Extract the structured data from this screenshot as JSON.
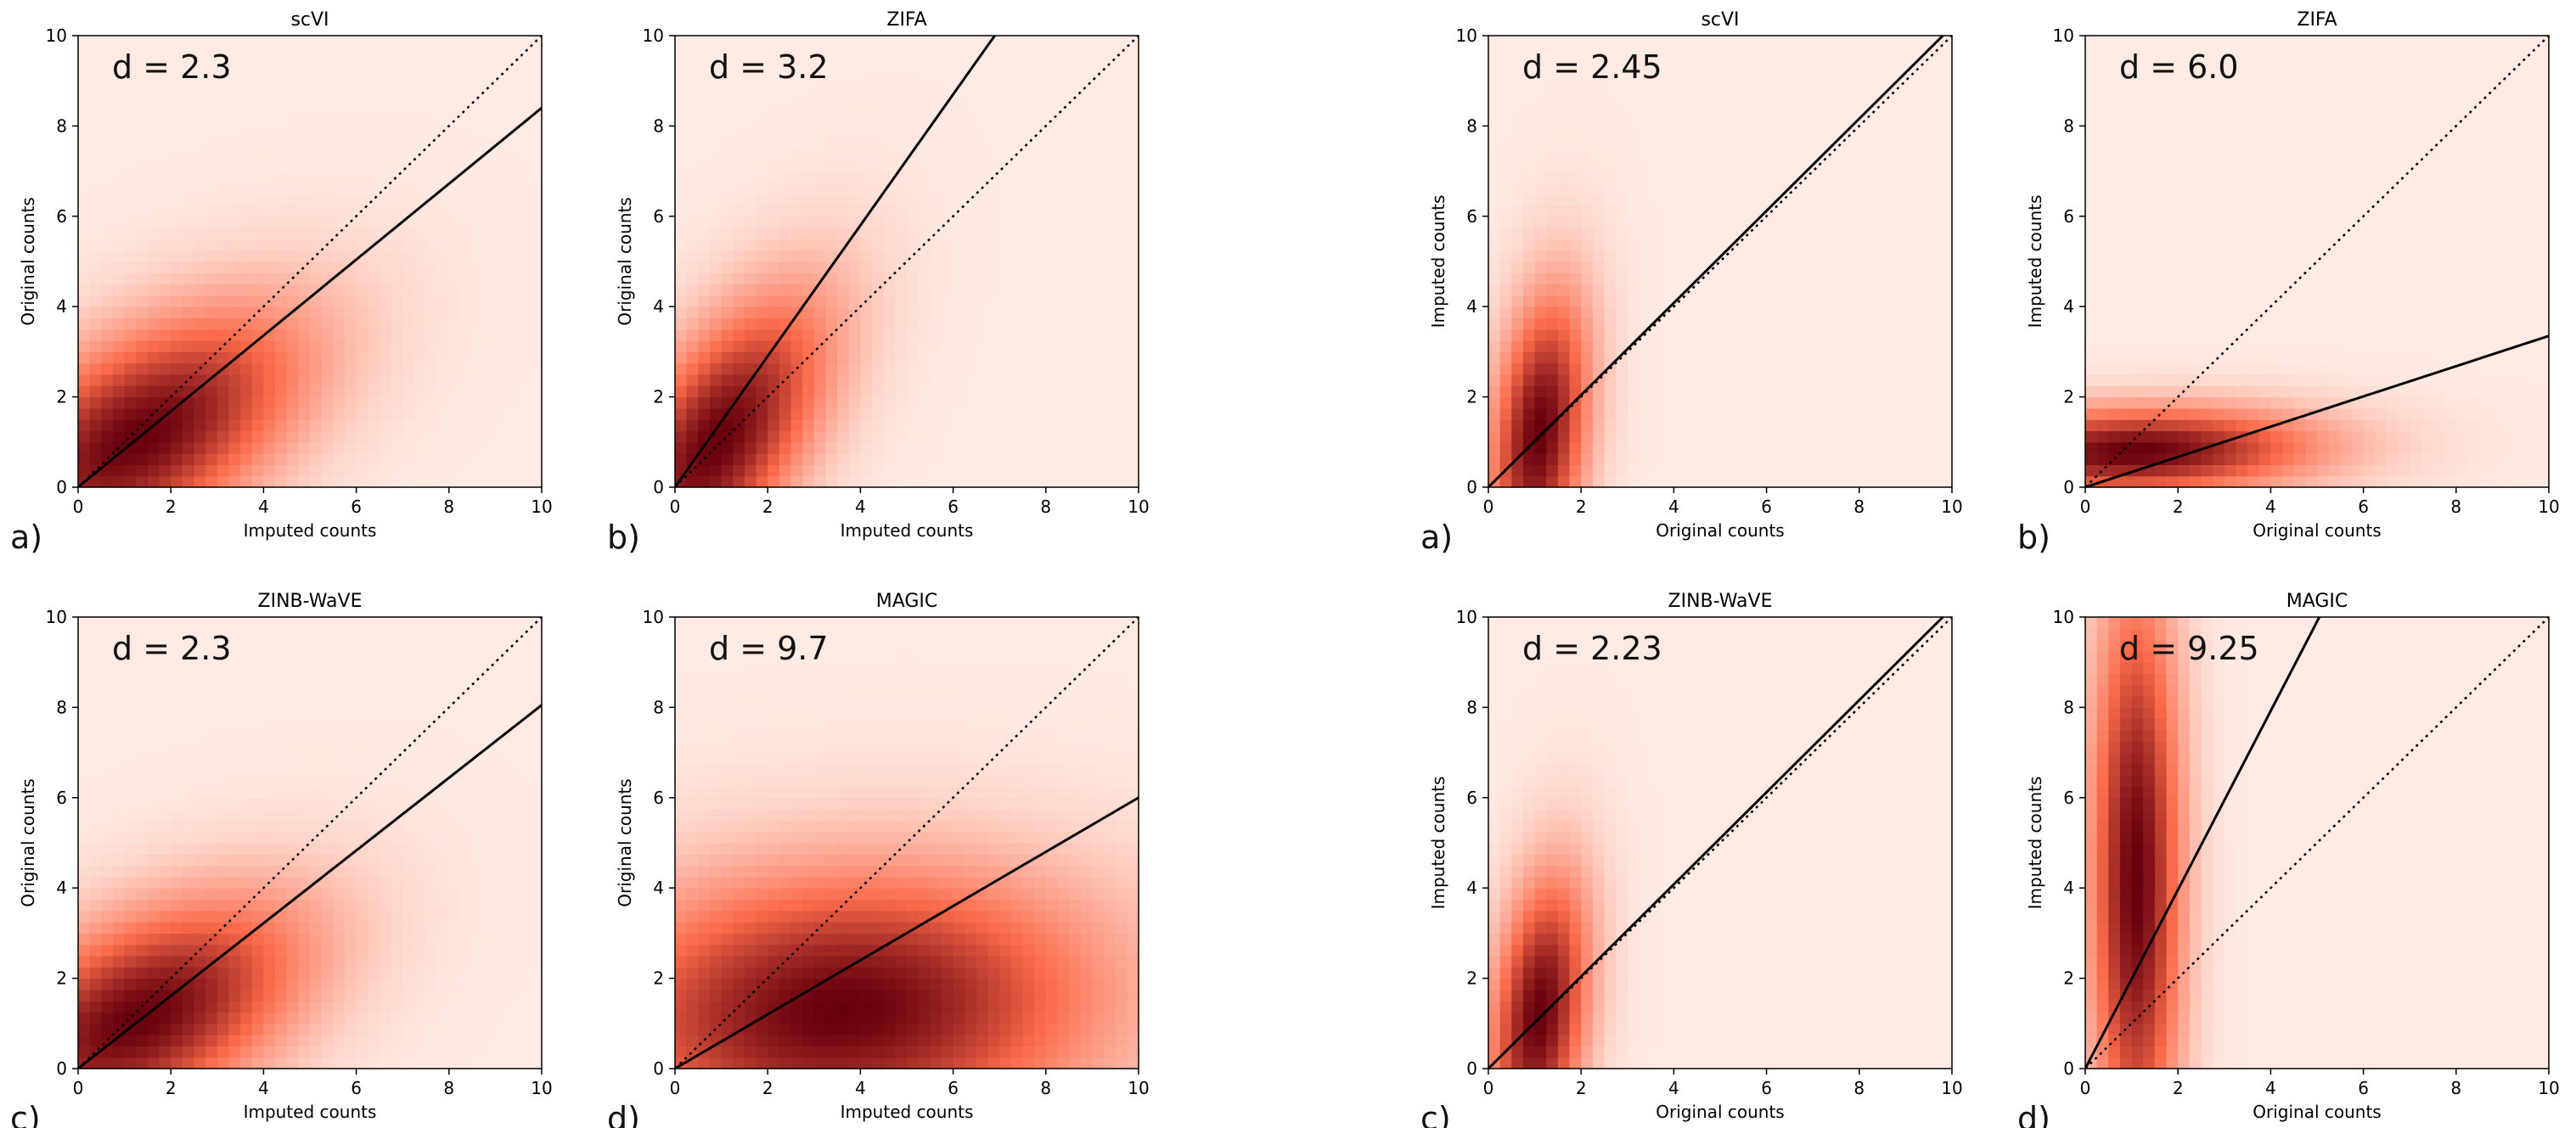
{
  "chart_data": [
    {
      "panel": "a)",
      "title": "scVI",
      "d_label": "d = 2.3",
      "xlabel": "Imputed counts",
      "ylabel": "Original counts",
      "xlim": [
        0,
        10
      ],
      "ylim": [
        0,
        10
      ],
      "ticks": [
        0,
        2,
        4,
        6,
        8,
        10
      ],
      "type": "heatmap",
      "fit_slope": 0.84,
      "diagonal": "dotted",
      "density": {
        "cx": 1.3,
        "cy": 1.1,
        "sx": 1.9,
        "sy": 1.5,
        "rho": 0.55,
        "sharp": 0.8
      }
    },
    {
      "panel": "b)",
      "title": "ZIFA",
      "d_label": "d = 3.2",
      "xlabel": "Imputed counts",
      "ylabel": "Original counts",
      "xlim": [
        0,
        10
      ],
      "ylim": [
        0,
        10
      ],
      "ticks": [
        0,
        2,
        4,
        6,
        8,
        10
      ],
      "type": "heatmap",
      "fit_slope": 1.45,
      "diagonal": "dotted",
      "density": {
        "cx": 0.9,
        "cy": 1.0,
        "sx": 1.2,
        "sy": 1.6,
        "rho": 0.6,
        "sharp": 0.7
      }
    },
    {
      "panel": "a)",
      "title": "scVI",
      "d_label": "d = 2.45",
      "xlabel": "Original counts",
      "ylabel": "Imputed counts",
      "xlim": [
        0,
        10
      ],
      "ylim": [
        0,
        10
      ],
      "ticks": [
        0,
        2,
        4,
        6,
        8,
        10
      ],
      "type": "heatmap",
      "fit_slope": 1.02,
      "diagonal": "dotted",
      "density": {
        "cx": 1.1,
        "cy": 1.2,
        "sx": 0.45,
        "sy": 1.3,
        "rho": 0.3,
        "sharp": 0.5
      }
    },
    {
      "panel": "b)",
      "title": "ZIFA",
      "d_label": "d = 6.0",
      "xlabel": "Original counts",
      "ylabel": "Imputed counts",
      "xlim": [
        0,
        10
      ],
      "ylim": [
        0,
        10
      ],
      "ticks": [
        0,
        2,
        4,
        6,
        8,
        10
      ],
      "type": "heatmap",
      "fit_slope": 0.335,
      "diagonal": "dotted",
      "density": {
        "cx": 1.1,
        "cy": 0.8,
        "sx": 1.8,
        "sy": 0.45,
        "rho": 0.1,
        "sharp": 0.6
      }
    },
    {
      "panel": "c)",
      "title": "ZINB-WaVE",
      "d_label": "d = 2.3",
      "xlabel": "Imputed counts",
      "ylabel": "Original counts",
      "xlim": [
        0,
        10
      ],
      "ylim": [
        0,
        10
      ],
      "ticks": [
        0,
        2,
        4,
        6,
        8,
        10
      ],
      "type": "heatmap",
      "fit_slope": 0.805,
      "diagonal": "dotted",
      "density": {
        "cx": 1.3,
        "cy": 1.1,
        "sx": 1.9,
        "sy": 1.4,
        "rho": 0.5,
        "sharp": 0.8
      }
    },
    {
      "panel": "d)",
      "title": "MAGIC",
      "d_label": "d = 9.7",
      "xlabel": "Imputed counts",
      "ylabel": "Original counts",
      "xlim": [
        0,
        10
      ],
      "ylim": [
        0,
        10
      ],
      "ticks": [
        0,
        2,
        4,
        6,
        8,
        10
      ],
      "type": "heatmap",
      "fit_slope": 0.6,
      "diagonal": "dotted",
      "density": {
        "cx": 3.6,
        "cy": 1.3,
        "sx": 3.6,
        "sy": 2.0,
        "rho": 0.1,
        "sharp": 1.2
      }
    },
    {
      "panel": "c)",
      "title": "ZINB-WaVE",
      "d_label": "d = 2.23",
      "xlabel": "Original counts",
      "ylabel": "Imputed counts",
      "xlim": [
        0,
        10
      ],
      "ylim": [
        0,
        10
      ],
      "ticks": [
        0,
        2,
        4,
        6,
        8,
        10
      ],
      "type": "heatmap",
      "fit_slope": 1.02,
      "diagonal": "dotted",
      "density": {
        "cx": 1.1,
        "cy": 1.2,
        "sx": 0.45,
        "sy": 1.3,
        "rho": 0.3,
        "sharp": 0.5
      }
    },
    {
      "panel": "d)",
      "title": "MAGIC",
      "d_label": "d = 9.25",
      "xlabel": "Original counts",
      "ylabel": "Imputed counts",
      "xlim": [
        0,
        10
      ],
      "ylim": [
        0,
        10
      ],
      "ticks": [
        0,
        2,
        4,
        6,
        8,
        10
      ],
      "type": "heatmap",
      "fit_slope": 1.98,
      "diagonal": "dotted",
      "density": {
        "cx": 1.1,
        "cy": 4.2,
        "sx": 0.45,
        "sy": 3.0,
        "rho": 0.0,
        "sharp": 0.6
      }
    }
  ],
  "colors": {
    "low": "#fff5f0",
    "mid": "#fb6a4a",
    "high": "#67000d",
    "line": "#000000"
  }
}
